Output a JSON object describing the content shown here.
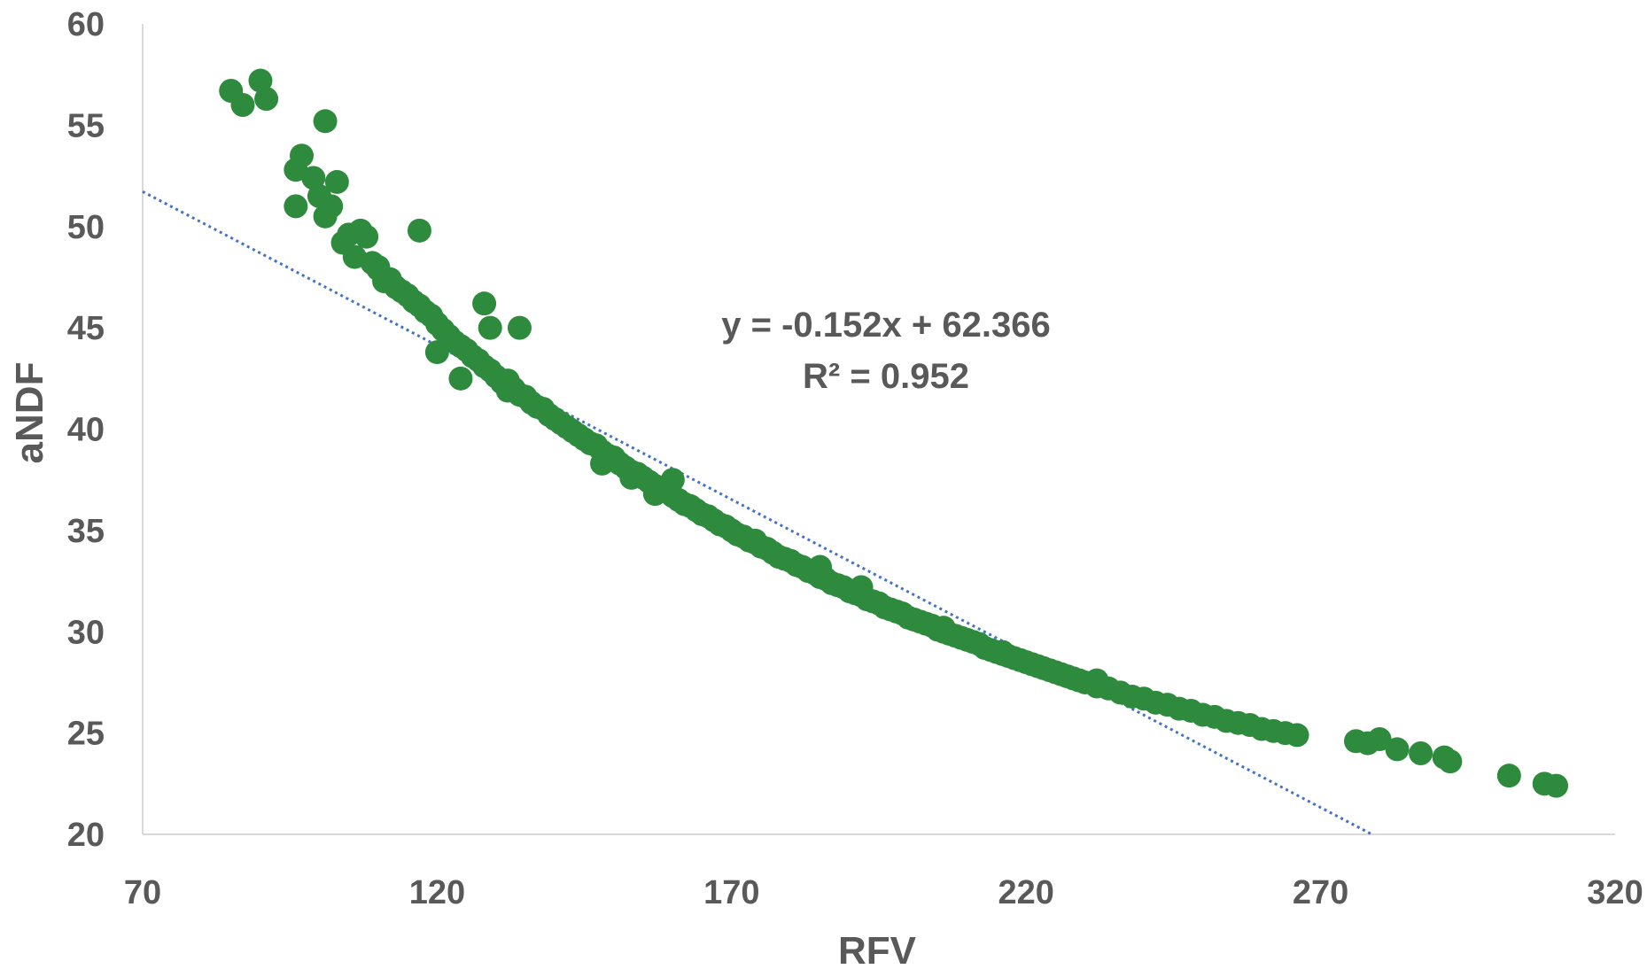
{
  "chart_data": {
    "type": "scatter",
    "title": "",
    "xlabel": "RFV",
    "ylabel": "aNDF",
    "xlim": [
      70,
      320
    ],
    "ylim": [
      20,
      60
    ],
    "xticks": [
      "70",
      "120",
      "170",
      "220",
      "270",
      "320"
    ],
    "yticks": [
      "20",
      "25",
      "30",
      "35",
      "40",
      "45",
      "50",
      "55",
      "60"
    ],
    "grid": false,
    "legend": "none",
    "marker_color": "#2e8b3e",
    "trendline": {
      "type": "linear",
      "slope": -0.152,
      "intercept": 62.366,
      "style": "dotted",
      "color": "#4472c4"
    },
    "annotation": {
      "equation": "y = -0.152x + 62.366",
      "r2": "R² = 0.952"
    },
    "series": [
      {
        "x": [
          85,
          87,
          90,
          91,
          96,
          97,
          99,
          100,
          101,
          102,
          103,
          104,
          105,
          106,
          107,
          108,
          109,
          110,
          111,
          112,
          113,
          114,
          115,
          116,
          117,
          118,
          119,
          120,
          121,
          122,
          123,
          124,
          125,
          126,
          127,
          128,
          129,
          130,
          131,
          132,
          133,
          134,
          135,
          136,
          137,
          138,
          139,
          140,
          141,
          142,
          143,
          144,
          145,
          146,
          147,
          148,
          149,
          150,
          151,
          152,
          153,
          154,
          155,
          156,
          157,
          158,
          159,
          160,
          161,
          162,
          163,
          164,
          165,
          166,
          167,
          168,
          169,
          170,
          171,
          172,
          173,
          174,
          175,
          176,
          177,
          178,
          179,
          180,
          181,
          182,
          183,
          184,
          185,
          186,
          187,
          188,
          189,
          190,
          191,
          192,
          193,
          194,
          195,
          196,
          197,
          198,
          199,
          200,
          201,
          202,
          203,
          204,
          205,
          206,
          207,
          208,
          209,
          210,
          211,
          212,
          213,
          214,
          215,
          216,
          217,
          218,
          219,
          220,
          221,
          222,
          223,
          224,
          225,
          226,
          227,
          228,
          229,
          230,
          232,
          234,
          236,
          238,
          240,
          242,
          244,
          246,
          248,
          250,
          252,
          254,
          256,
          258,
          260,
          262,
          264,
          266,
          276,
          278,
          280,
          283,
          287,
          291,
          292,
          302,
          308,
          310,
          96,
          101,
          110,
          117,
          120,
          124,
          128,
          129,
          132,
          134,
          148,
          153,
          157,
          160,
          174,
          185,
          192,
          206,
          216,
          232
        ],
        "y": [
          56.7,
          56.0,
          57.2,
          56.3,
          52.8,
          53.5,
          52.4,
          51.5,
          55.2,
          51.0,
          52.2,
          49.2,
          49.6,
          48.5,
          49.8,
          49.5,
          48.2,
          47.9,
          47.3,
          47.4,
          47.0,
          46.8,
          46.6,
          46.3,
          46.1,
          45.8,
          45.6,
          45.2,
          44.9,
          44.6,
          44.3,
          44.1,
          43.9,
          43.6,
          43.4,
          43.1,
          42.9,
          42.6,
          42.3,
          42.4,
          42.0,
          41.7,
          41.6,
          41.3,
          41.1,
          41.0,
          40.7,
          40.5,
          40.3,
          40.1,
          39.9,
          39.7,
          39.5,
          39.3,
          39.2,
          38.9,
          38.7,
          38.6,
          38.3,
          38.1,
          37.9,
          37.8,
          37.6,
          37.4,
          37.2,
          37.0,
          36.9,
          36.7,
          36.5,
          36.3,
          36.2,
          36.0,
          35.8,
          35.7,
          35.5,
          35.3,
          35.2,
          35.0,
          34.8,
          34.7,
          34.5,
          34.4,
          34.2,
          34.1,
          33.9,
          33.7,
          33.6,
          33.5,
          33.3,
          33.2,
          33.0,
          32.9,
          32.7,
          32.6,
          32.4,
          32.3,
          32.2,
          32.0,
          31.9,
          31.8,
          31.6,
          31.5,
          31.4,
          31.2,
          31.1,
          31.0,
          30.9,
          30.7,
          30.6,
          30.5,
          30.4,
          30.3,
          30.1,
          30.0,
          29.9,
          29.8,
          29.7,
          29.6,
          29.5,
          29.4,
          29.2,
          29.1,
          29.0,
          28.9,
          28.8,
          28.7,
          28.6,
          28.5,
          28.4,
          28.3,
          28.2,
          28.1,
          28.0,
          27.9,
          27.8,
          27.7,
          27.6,
          27.5,
          27.3,
          27.2,
          27.0,
          26.8,
          26.7,
          26.5,
          26.4,
          26.2,
          26.1,
          25.9,
          25.8,
          25.6,
          25.5,
          25.4,
          25.2,
          25.1,
          25.0,
          24.9,
          24.6,
          24.5,
          24.7,
          24.2,
          24.0,
          23.8,
          23.6,
          22.9,
          22.5,
          22.4,
          51.0,
          50.5,
          48.0,
          49.8,
          43.8,
          42.5,
          46.2,
          45.0,
          41.9,
          45.0,
          38.3,
          37.6,
          36.8,
          37.5,
          34.5,
          33.2,
          32.2,
          30.2,
          29.0,
          27.6
        ]
      }
    ]
  }
}
